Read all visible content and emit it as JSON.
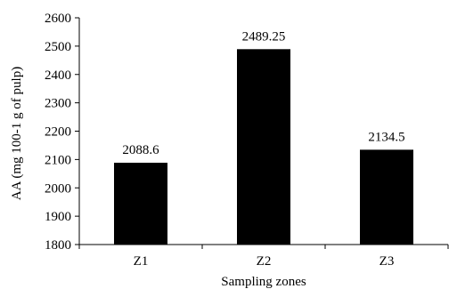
{
  "chart_data": {
    "type": "bar",
    "categories": [
      "Z1",
      "Z2",
      "Z3"
    ],
    "values": [
      2088.6,
      2489.25,
      2134.5
    ],
    "data_labels": [
      "2088.6",
      "2489.25",
      "2134.5"
    ],
    "xlabel": "Sampling zones",
    "ylabel": "AA (mg 100-1 g of pulp)",
    "ylim": [
      1800,
      2600
    ],
    "yticks": [
      1800,
      1900,
      2000,
      2100,
      2200,
      2300,
      2400,
      2500,
      2600
    ],
    "grid": false,
    "legend": "none",
    "bar_color": "#000000"
  }
}
